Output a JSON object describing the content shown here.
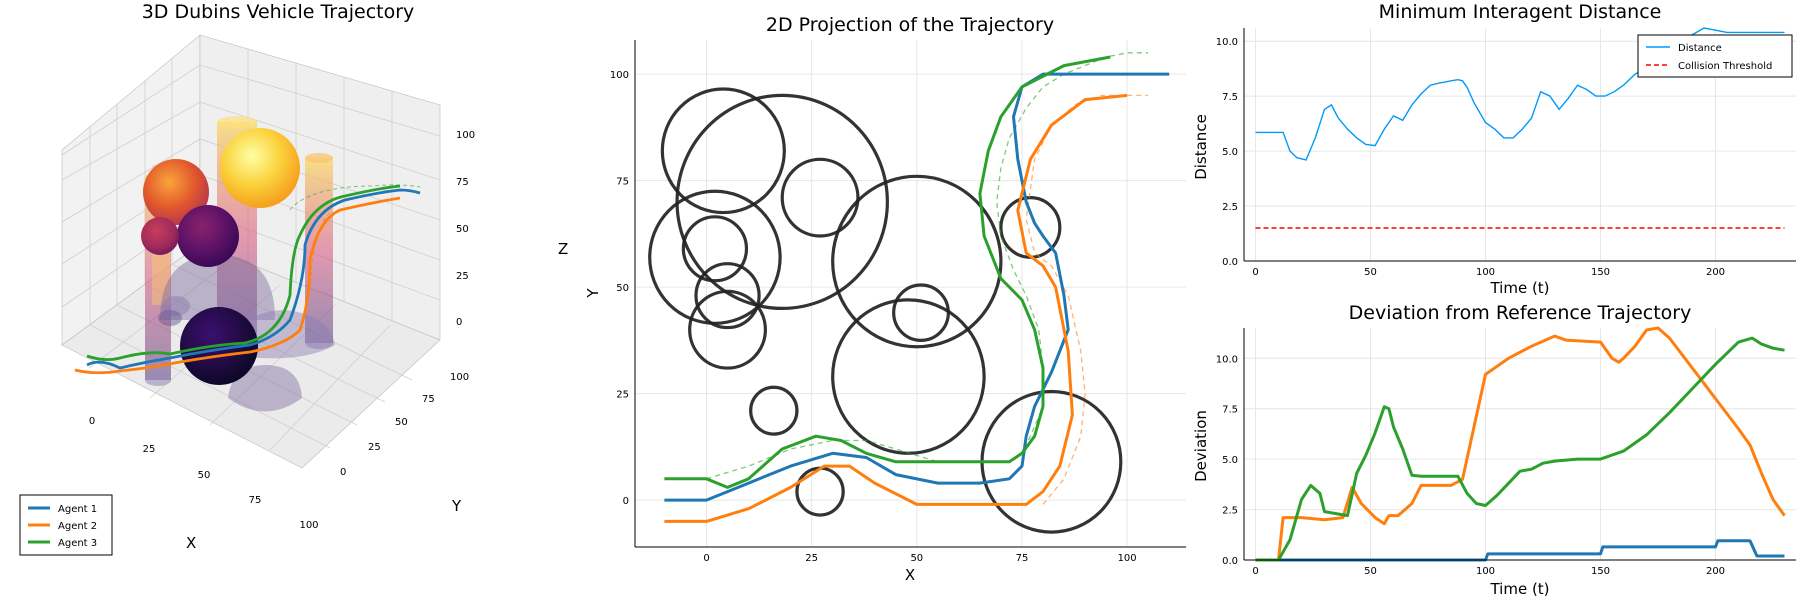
{
  "chart_data": [
    {
      "panel": "3d",
      "type": "line",
      "title": "3D Dubins Vehicle Trajectory",
      "xlabel": "X",
      "ylabel": "Y",
      "zlabel": "Z",
      "x_ticks": [
        "0",
        "25",
        "50",
        "75",
        "100"
      ],
      "y_ticks": [
        "0",
        "25",
        "50",
        "75",
        "100"
      ],
      "z_ticks": [
        "0",
        "25",
        "50",
        "75",
        "100"
      ],
      "legend_position": "bottom-left",
      "legend": [
        {
          "name": "Agent 1",
          "color": "#1f77b4"
        },
        {
          "name": "Agent 2",
          "color": "#ff7f0e"
        },
        {
          "name": "Agent 3",
          "color": "#2ca02c"
        }
      ],
      "obstacle_palette": "inferno",
      "grid": true
    },
    {
      "panel": "2d",
      "type": "line",
      "title": "2D Projection of the Trajectory",
      "xlabel": "X",
      "ylabel": "Y",
      "xlim": [
        -17,
        114
      ],
      "ylim": [
        -11,
        108
      ],
      "x_ticks": [
        0,
        25,
        50,
        75,
        100
      ],
      "y_ticks": [
        0,
        25,
        50,
        75,
        100
      ],
      "grid": true,
      "obstacles": [
        {
          "cx": 4,
          "cy": 82,
          "r": 14.5
        },
        {
          "cx": 18,
          "cy": 70,
          "r": 25
        },
        {
          "cx": 2,
          "cy": 57,
          "r": 15.5
        },
        {
          "cx": 2,
          "cy": 59,
          "r": 7.5
        },
        {
          "cx": 27,
          "cy": 71,
          "r": 9
        },
        {
          "cx": 50,
          "cy": 56,
          "r": 20
        },
        {
          "cx": 51,
          "cy": 44,
          "r": 6.5
        },
        {
          "cx": 5,
          "cy": 48,
          "r": 7.5
        },
        {
          "cx": 5,
          "cy": 40,
          "r": 9
        },
        {
          "cx": 48,
          "cy": 29,
          "r": 18
        },
        {
          "cx": 16,
          "cy": 21,
          "r": 5.5
        },
        {
          "cx": 77,
          "cy": 64,
          "r": 7
        },
        {
          "cx": 82,
          "cy": 9,
          "r": 16.5
        },
        {
          "cx": 27,
          "cy": 2,
          "r": 5.5
        }
      ],
      "series": [
        {
          "name": "Agent 1",
          "color": "#1f77b4",
          "x": [
            -10,
            0,
            10,
            20,
            30,
            38,
            45,
            55,
            65,
            72,
            75,
            76,
            78,
            82,
            86,
            85,
            83,
            80,
            78,
            76,
            74,
            73,
            75,
            80,
            90,
            110
          ],
          "y": [
            0,
            0,
            4,
            8,
            11,
            10,
            6,
            4,
            4,
            5,
            8,
            15,
            22,
            30,
            40,
            48,
            58,
            62,
            65,
            70,
            80,
            90,
            97,
            100,
            100,
            100
          ]
        },
        {
          "name": "Agent 2",
          "color": "#ff7f0e",
          "x": [
            -10,
            0,
            10,
            20,
            28,
            34,
            40,
            50,
            60,
            70,
            76,
            80,
            84,
            87,
            86,
            83,
            80,
            76,
            74,
            77,
            82,
            90,
            100
          ],
          "y": [
            -5,
            -5,
            -2,
            3,
            8,
            8,
            4,
            -1,
            -1,
            -1,
            -1,
            2,
            8,
            20,
            35,
            50,
            55,
            58,
            68,
            80,
            88,
            94,
            95
          ]
        },
        {
          "name": "Agent 3",
          "color": "#2ca02c",
          "x": [
            -10,
            0,
            5,
            10,
            18,
            26,
            32,
            38,
            45,
            55,
            65,
            72,
            75,
            78,
            80,
            80,
            78,
            75,
            70,
            66,
            65,
            67,
            70,
            75,
            85,
            96
          ],
          "y": [
            5,
            5,
            3,
            5,
            12,
            15,
            14,
            11,
            9,
            9,
            9,
            9,
            11,
            15,
            22,
            31,
            40,
            47,
            52,
            62,
            72,
            82,
            90,
            97,
            102,
            104
          ]
        }
      ],
      "references": [
        {
          "color": "#2ca02c",
          "x": [
            0,
            10,
            20,
            30,
            38,
            45,
            55,
            65,
            72,
            75,
            77,
            80,
            80,
            79,
            76,
            73,
            70,
            69,
            70,
            72,
            76,
            80,
            85,
            90,
            95,
            100,
            105
          ],
          "y": [
            5,
            8,
            12,
            14,
            14,
            12,
            9,
            9,
            9,
            11,
            15,
            22,
            31,
            40,
            48,
            54,
            62,
            70,
            78,
            85,
            92,
            97,
            100,
            102,
            104,
            105,
            105
          ]
        },
        {
          "color": "#ff7f0e",
          "x": [
            80,
            85,
            89,
            90,
            89,
            86,
            82,
            78,
            76,
            78,
            82,
            88,
            94,
            100,
            105
          ],
          "y": [
            -1,
            5,
            15,
            25,
            35,
            48,
            55,
            58,
            66,
            80,
            88,
            93,
            95,
            95,
            95
          ]
        }
      ]
    },
    {
      "panel": "distance",
      "type": "line",
      "title": "Minimum Interagent Distance",
      "xlabel": "Time (t)",
      "ylabel": "Distance",
      "xlim": [
        -5,
        235
      ],
      "ylim": [
        0,
        10.6
      ],
      "x_ticks": [
        0,
        50,
        100,
        150,
        200
      ],
      "y_ticks": [
        "0.0",
        "2.5",
        "5.0",
        "7.5",
        "10.0"
      ],
      "legend_position": "top-right",
      "grid": true,
      "series": [
        {
          "name": "Distance",
          "color": "#009af9",
          "x": [
            0,
            12,
            15,
            18,
            22,
            26,
            30,
            33,
            36,
            40,
            44,
            48,
            52,
            56,
            60,
            64,
            68,
            72,
            76,
            80,
            85,
            88,
            90,
            92,
            95,
            100,
            104,
            108,
            112,
            116,
            120,
            124,
            128,
            132,
            136,
            140,
            144,
            148,
            152,
            156,
            160,
            165,
            170,
            175,
            180,
            185,
            190,
            195,
            200,
            205,
            210,
            215,
            220,
            225,
            230
          ],
          "y": [
            5.85,
            5.85,
            5.0,
            4.7,
            4.6,
            5.6,
            6.9,
            7.1,
            6.5,
            6.0,
            5.6,
            5.3,
            5.25,
            6.0,
            6.6,
            6.4,
            7.1,
            7.6,
            8.0,
            8.1,
            8.2,
            8.25,
            8.2,
            7.9,
            7.2,
            6.3,
            6.0,
            5.6,
            5.6,
            6.0,
            6.5,
            7.7,
            7.5,
            6.9,
            7.4,
            8.0,
            7.8,
            7.5,
            7.5,
            7.7,
            8.0,
            8.5,
            8.8,
            9.3,
            9.8,
            10.0,
            10.3,
            10.6,
            10.5,
            10.4,
            10.4,
            10.4,
            10.4,
            10.4,
            10.4
          ]
        },
        {
          "name": "Collision Threshold",
          "color": "#ff0000",
          "dashed": true,
          "x": [
            0,
            230
          ],
          "y": [
            1.5,
            1.5
          ]
        }
      ]
    },
    {
      "panel": "deviation",
      "type": "line",
      "title": "Deviation from Reference Trajectory",
      "xlabel": "Time (t)",
      "ylabel": "Deviation",
      "xlim": [
        -5,
        235
      ],
      "ylim": [
        0,
        11.5
      ],
      "x_ticks": [
        0,
        50,
        100,
        150,
        200
      ],
      "y_ticks": [
        "0.0",
        "2.5",
        "5.0",
        "7.5",
        "10.0"
      ],
      "grid": true,
      "series": [
        {
          "name": "Agent 1",
          "color": "#1f77b4",
          "x": [
            0,
            100,
            101,
            150,
            151,
            200,
            201,
            215,
            218,
            230
          ],
          "y": [
            0,
            0,
            0.3,
            0.3,
            0.65,
            0.65,
            0.95,
            0.95,
            0.2,
            0.2
          ]
        },
        {
          "name": "Agent 2",
          "color": "#ff7f0e",
          "x": [
            0,
            10,
            12,
            20,
            30,
            38,
            42,
            46,
            52,
            56,
            58,
            62,
            68,
            72,
            85,
            90,
            100,
            110,
            120,
            130,
            135,
            150,
            155,
            158,
            160,
            165,
            170,
            175,
            180,
            190,
            200,
            210,
            215,
            220,
            225,
            230
          ],
          "y": [
            0,
            0,
            2.1,
            2.1,
            2.0,
            2.1,
            3.6,
            2.8,
            2.1,
            1.8,
            2.2,
            2.2,
            2.8,
            3.7,
            3.7,
            4.0,
            9.2,
            10.0,
            10.6,
            11.1,
            10.9,
            10.8,
            10.0,
            9.8,
            10.0,
            10.6,
            11.4,
            11.5,
            11.0,
            9.5,
            8.0,
            6.5,
            5.7,
            4.3,
            3.0,
            2.2
          ]
        },
        {
          "name": "Agent 3",
          "color": "#2ca02c",
          "x": [
            0,
            10,
            15,
            20,
            24,
            28,
            30,
            35,
            40,
            44,
            48,
            52,
            56,
            58,
            60,
            64,
            68,
            72,
            76,
            80,
            88,
            92,
            96,
            100,
            105,
            110,
            115,
            120,
            125,
            130,
            140,
            150,
            160,
            170,
            180,
            190,
            200,
            210,
            216,
            220,
            225,
            230
          ],
          "y": [
            0,
            0,
            1.0,
            3.0,
            3.7,
            3.3,
            2.4,
            2.3,
            2.2,
            4.3,
            5.2,
            6.3,
            7.6,
            7.5,
            6.6,
            5.5,
            4.2,
            4.15,
            4.15,
            4.15,
            4.15,
            3.3,
            2.8,
            2.7,
            3.2,
            3.8,
            4.4,
            4.5,
            4.8,
            4.9,
            5.0,
            5.0,
            5.4,
            6.2,
            7.3,
            8.5,
            9.7,
            10.8,
            11.0,
            10.7,
            10.5,
            10.4
          ]
        }
      ]
    }
  ]
}
